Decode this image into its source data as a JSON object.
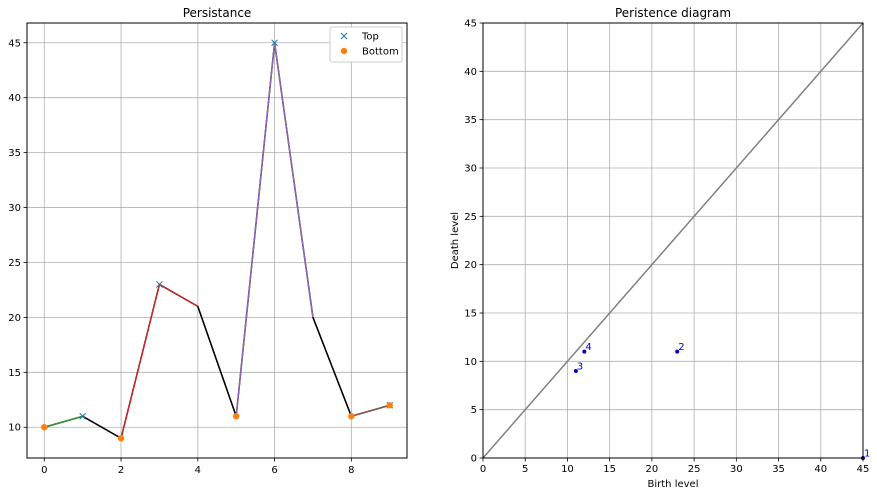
{
  "chart_data": [
    {
      "type": "line",
      "title": "Persistance",
      "xlabel": "",
      "ylabel": "",
      "xlim": [
        -0.45,
        9.45
      ],
      "ylim": [
        7.2,
        46.8
      ],
      "xticks": [
        0,
        2,
        4,
        6,
        8
      ],
      "yticks": [
        10,
        15,
        20,
        25,
        30,
        35,
        40,
        45
      ],
      "grid": true,
      "legend_position": "top-right",
      "x": [
        0,
        1,
        2,
        3,
        4,
        5,
        6,
        7,
        8,
        9
      ],
      "y": [
        10,
        11,
        9,
        23,
        21,
        11,
        45,
        20,
        11,
        12
      ],
      "line_color": "#000000",
      "segments": [
        {
          "x": [
            0,
            1
          ],
          "y": [
            10,
            11
          ],
          "color": "#2ca02c"
        },
        {
          "x": [
            1,
            2
          ],
          "y": [
            11,
            9
          ],
          "color": "#000000"
        },
        {
          "x": [
            2,
            3
          ],
          "y": [
            9,
            23
          ],
          "color": "#d62728"
        },
        {
          "x": [
            3,
            4
          ],
          "y": [
            23,
            21
          ],
          "color": "#d62728"
        },
        {
          "x": [
            4,
            5
          ],
          "y": [
            21,
            11
          ],
          "color": "#000000"
        },
        {
          "x": [
            5,
            6
          ],
          "y": [
            11,
            45
          ],
          "color": "#9467bd"
        },
        {
          "x": [
            6,
            7
          ],
          "y": [
            45,
            20
          ],
          "color": "#9467bd"
        },
        {
          "x": [
            7,
            8
          ],
          "y": [
            20,
            11
          ],
          "color": "#000000"
        },
        {
          "x": [
            8,
            9
          ],
          "y": [
            11,
            12
          ],
          "color": "#8c564b"
        }
      ],
      "series": [
        {
          "name": "Top",
          "marker": "x",
          "color": "#1f77b4",
          "x": [
            1,
            3,
            6,
            9
          ],
          "y": [
            11,
            23,
            45,
            12
          ]
        },
        {
          "name": "Bottom",
          "marker": "o",
          "color": "#ff7f0e",
          "x": [
            0,
            2,
            5,
            8,
            9
          ],
          "y": [
            10,
            9,
            11,
            11,
            12
          ]
        }
      ]
    },
    {
      "type": "scatter",
      "title": "Peristence diagram",
      "xlabel": "Birth level",
      "ylabel": "Death level",
      "xlim": [
        0,
        45
      ],
      "ylim": [
        0,
        45
      ],
      "xticks": [
        0,
        5,
        10,
        15,
        20,
        25,
        30,
        35,
        40,
        45
      ],
      "yticks": [
        0,
        5,
        10,
        15,
        20,
        25,
        30,
        35,
        40,
        45
      ],
      "grid": true,
      "diagonal_color": "#808080",
      "point_color": "#0000cc",
      "points": [
        {
          "label": "1",
          "x": 45,
          "y": 0
        },
        {
          "label": "2",
          "x": 23,
          "y": 11
        },
        {
          "label": "3",
          "x": 11,
          "y": 9
        },
        {
          "label": "4",
          "x": 12,
          "y": 11
        }
      ]
    }
  ]
}
